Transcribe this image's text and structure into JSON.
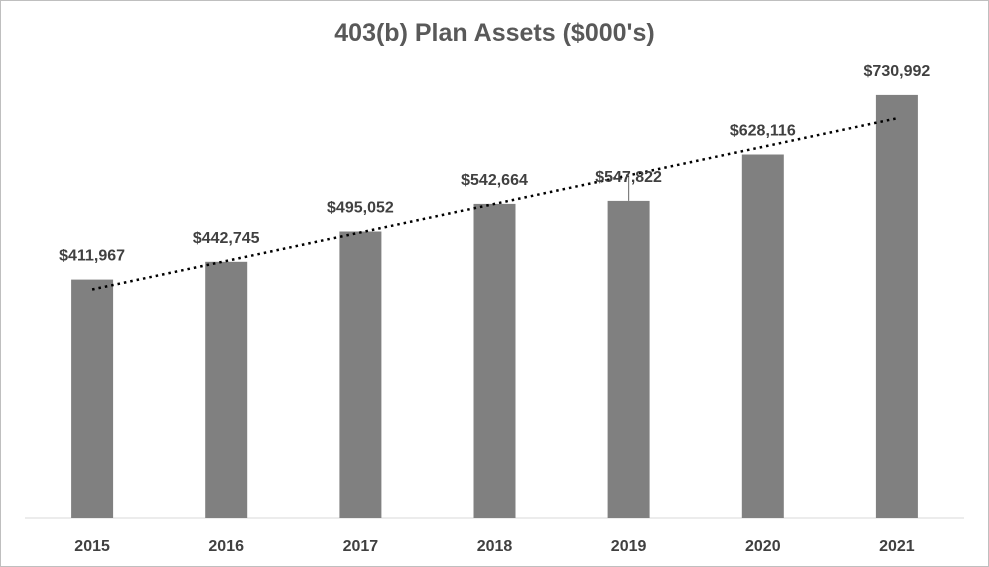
{
  "chart_data": {
    "type": "bar",
    "title": "403(b) Plan Assets ($000's)",
    "xlabel": "",
    "ylabel": "",
    "categories": [
      "2015",
      "2016",
      "2017",
      "2018",
      "2019",
      "2020",
      "2021"
    ],
    "values": [
      411967,
      442745,
      495052,
      542664,
      547822,
      628116,
      730992
    ],
    "data_labels": [
      "$411,967",
      "$442,745",
      "$495,052",
      "$542,664",
      "$547,822",
      "$628,116",
      "$730,992"
    ],
    "ylim": [
      0,
      800000
    ],
    "grid": false,
    "legend": "none",
    "trendline": "linear (dotted)",
    "bar_color": "#808080",
    "trendline_color": "#000000",
    "error_bar_on": "2019"
  }
}
